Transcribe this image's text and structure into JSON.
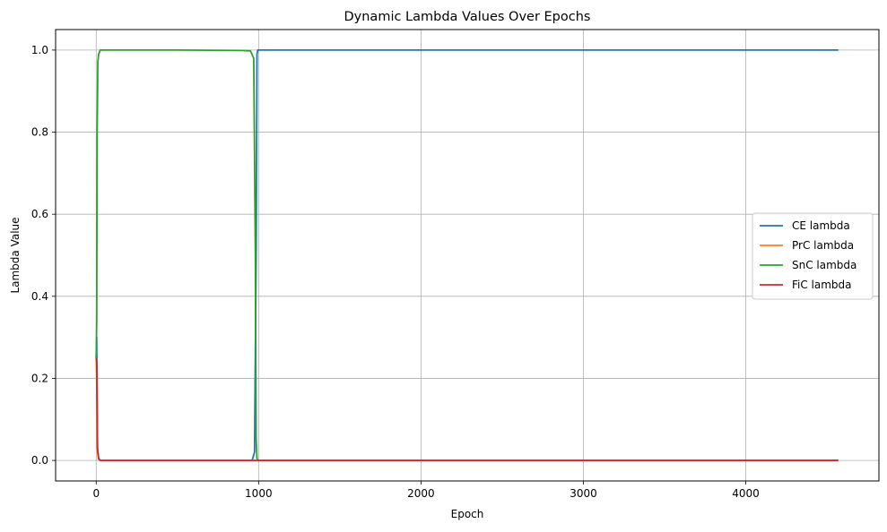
{
  "chart_data": {
    "type": "line",
    "title": "Dynamic Lambda Values Over Epochs",
    "xlabel": "Epoch",
    "ylabel": "Lambda Value",
    "xlim": [
      -250,
      4820
    ],
    "ylim": [
      -0.05,
      1.05
    ],
    "xticks": [
      0,
      1000,
      2000,
      3000,
      4000
    ],
    "yticks": [
      0.0,
      0.2,
      0.4,
      0.6,
      0.8,
      1.0
    ],
    "grid": true,
    "legend_position": "center-right",
    "series": [
      {
        "name": "CE lambda",
        "color": "#1f77b4",
        "x": [
          0,
          3,
          8,
          15,
          25,
          50,
          200,
          500,
          900,
          960,
          975,
          985,
          990,
          995,
          1005,
          1100,
          2000,
          3000,
          4000,
          4570
        ],
        "y": [
          0.25,
          0.3,
          0.03,
          0.005,
          0.0,
          0.0,
          0.0,
          0.0,
          0.0,
          0.0,
          0.02,
          0.5,
          0.99,
          1.0,
          1.0,
          1.0,
          1.0,
          1.0,
          1.0,
          1.0
        ]
      },
      {
        "name": "PrC lambda",
        "color": "#ff7f0e",
        "x": [
          0,
          3,
          8,
          15,
          25,
          100,
          1000,
          2000,
          3000,
          4000,
          4570
        ],
        "y": [
          0.25,
          0.2,
          0.02,
          0.003,
          0.0,
          0.0,
          0.0,
          0.0,
          0.0,
          0.0,
          0.0
        ]
      },
      {
        "name": "SnC lambda",
        "color": "#2ca02c",
        "x": [
          0,
          3,
          6,
          10,
          15,
          25,
          40,
          100,
          500,
          900,
          950,
          970,
          980,
          985,
          990,
          995,
          1005,
          1100,
          2000,
          3000,
          4000,
          4570
        ],
        "y": [
          0.25,
          0.34,
          0.8,
          0.97,
          0.99,
          1.0,
          1.0,
          1.0,
          1.0,
          0.999,
          0.998,
          0.98,
          0.5,
          0.05,
          0.005,
          0.0,
          0.0,
          0.0,
          0.0,
          0.0,
          0.0,
          0.0
        ]
      },
      {
        "name": "FiC lambda",
        "color": "#d62728",
        "x": [
          0,
          3,
          8,
          15,
          25,
          100,
          1000,
          2000,
          3000,
          4000,
          4570
        ],
        "y": [
          0.25,
          0.24,
          0.03,
          0.004,
          0.0,
          0.0,
          0.0,
          0.0,
          0.0,
          0.0,
          0.0
        ]
      }
    ]
  }
}
